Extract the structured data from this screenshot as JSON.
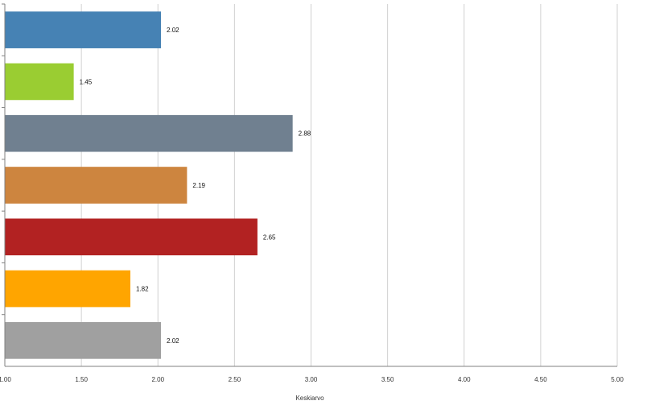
{
  "chart_data": {
    "type": "bar",
    "orientation": "horizontal",
    "title": "",
    "xlabel": "Keskiarvo",
    "ylabel": "",
    "xlim": [
      1.0,
      5.0
    ],
    "x_ticks": [
      1.0,
      1.5,
      2.0,
      2.5,
      3.0,
      3.5,
      4.0,
      4.5,
      5.0
    ],
    "x_tick_labels": [
      "1.00",
      "1.50",
      "2.00",
      "2.50",
      "3.00",
      "3.50",
      "4.00",
      "4.50",
      "5.00"
    ],
    "grid": "vertical",
    "categories": [
      "",
      "",
      "",
      "",
      "",
      "",
      ""
    ],
    "values": [
      2.02,
      1.45,
      2.88,
      2.19,
      2.65,
      1.82,
      2.02
    ],
    "data_labels": [
      "2.02",
      "1.45",
      "2.88",
      "2.19",
      "2.65",
      "1.82",
      "2.02"
    ],
    "colors": [
      "#4682b4",
      "#9acd32",
      "#708090",
      "#cd853f",
      "#b22222",
      "#ffa500",
      "#a0a0a0"
    ],
    "grid_color": "#d0d0d0",
    "axis_color": "#808080"
  }
}
